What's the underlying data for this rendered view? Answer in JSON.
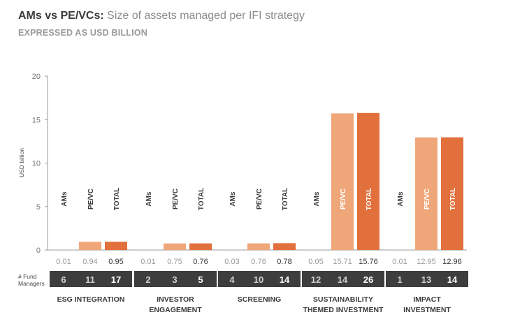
{
  "header": {
    "title_bold": "AMs vs PE/VCs:",
    "title_rest": "Size of assets managed per IFI strategy",
    "subtitle": "EXPRESSED AS USD BILLION"
  },
  "colors": {
    "ams": "#c9c9c9",
    "pevc": "#efa679",
    "total": "#e2703c",
    "count_bg": "#3d3d3d",
    "axis": "#9a9a9a"
  },
  "managers_label": [
    "# Fund",
    "Managers"
  ],
  "chart_data": {
    "type": "bar",
    "ylabel": "USD billion",
    "ylim": [
      0,
      20
    ],
    "yticks": [
      0,
      5,
      10,
      15,
      20
    ],
    "series_labels": [
      "AMs",
      "PE/VC",
      "TOTAL"
    ],
    "categories": [
      {
        "name": [
          "ESG INTEGRATION"
        ],
        "values": [
          "0.01",
          "0.94",
          "0.95"
        ],
        "managers": [
          "6",
          "11",
          "17"
        ]
      },
      {
        "name": [
          "INVESTOR",
          "ENGAGEMENT"
        ],
        "values": [
          "0.01",
          "0.75",
          "0.76"
        ],
        "managers": [
          "2",
          "3",
          "5"
        ]
      },
      {
        "name": [
          "SCREENING"
        ],
        "values": [
          "0.03",
          "0.76",
          "0.78"
        ],
        "managers": [
          "4",
          "10",
          "14"
        ]
      },
      {
        "name": [
          "SUSTAINABILITY",
          "THEMED INVESTMENT"
        ],
        "values": [
          "0.05",
          "15.71",
          "15.76"
        ],
        "managers": [
          "12",
          "14",
          "26"
        ]
      },
      {
        "name": [
          "IMPACT",
          "INVESTMENT"
        ],
        "values": [
          "0.01",
          "12.95",
          "12.96"
        ],
        "managers": [
          "1",
          "13",
          "14"
        ]
      }
    ]
  }
}
